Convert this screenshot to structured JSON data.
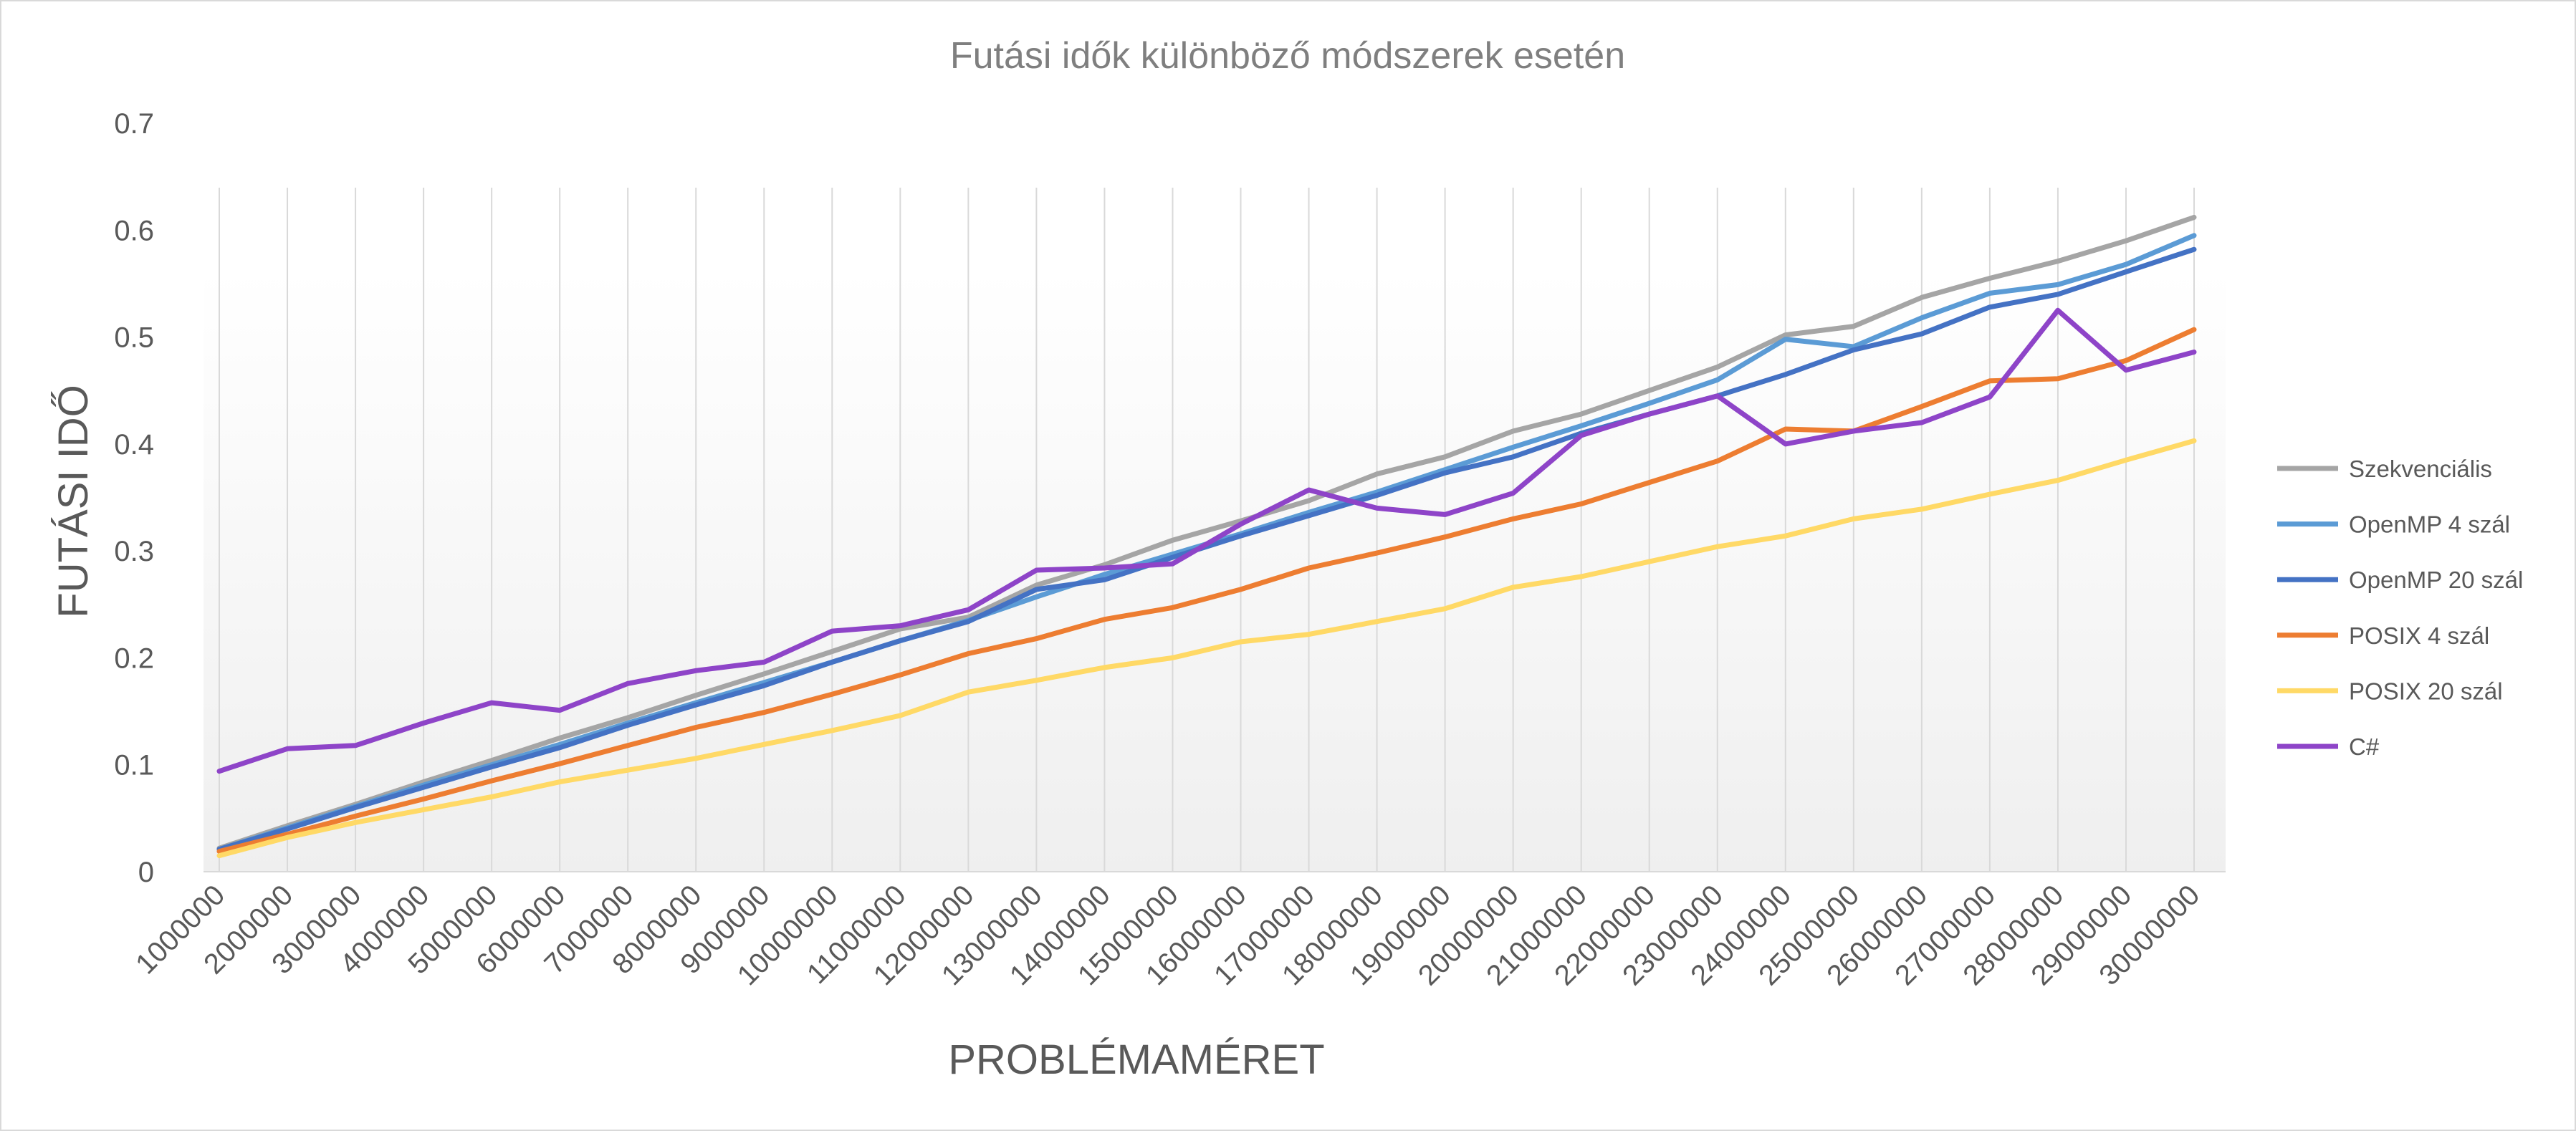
{
  "chart_data": {
    "type": "line",
    "title": "Futási idők különböző módszerek esetén",
    "xlabel": "PROBLÉMAMÉRET",
    "ylabel": "FUTÁSI IDŐ",
    "ylim": [
      0,
      0.7
    ],
    "yticks": [
      0,
      0.1,
      0.2,
      0.3,
      0.4,
      0.5,
      0.6,
      0.7
    ],
    "ytick_labels": [
      "0",
      "0.1",
      "0.2",
      "0.3",
      "0.4",
      "0.5",
      "0.6",
      "0.7"
    ],
    "grid": "vertical",
    "legend_position": "right",
    "categories": [
      "1000000",
      "2000000",
      "3000000",
      "4000000",
      "5000000",
      "6000000",
      "7000000",
      "8000000",
      "9000000",
      "10000000",
      "11000000",
      "12000000",
      "13000000",
      "14000000",
      "15000000",
      "16000000",
      "17000000",
      "18000000",
      "19000000",
      "20000000",
      "21000000",
      "22000000",
      "23000000",
      "24000000",
      "25000000",
      "26000000",
      "27000000",
      "28000000",
      "29000000",
      "30000000"
    ],
    "series": [
      {
        "name": "Szekvenciális",
        "color": "#a5a5a5",
        "values": [
          0.022,
          0.043,
          0.063,
          0.084,
          0.104,
          0.125,
          0.144,
          0.165,
          0.185,
          0.206,
          0.227,
          0.238,
          0.268,
          0.287,
          0.31,
          0.328,
          0.347,
          0.372,
          0.388,
          0.412,
          0.428,
          0.45,
          0.472,
          0.502,
          0.51,
          0.537,
          0.555,
          0.571,
          0.59,
          0.612
        ]
      },
      {
        "name": "OpenMP 4 szál",
        "color": "#5b9bd5",
        "values": [
          0.021,
          0.041,
          0.061,
          0.081,
          0.1,
          0.119,
          0.139,
          0.158,
          0.177,
          0.196,
          0.216,
          0.235,
          0.257,
          0.278,
          0.297,
          0.316,
          0.336,
          0.355,
          0.376,
          0.397,
          0.417,
          0.438,
          0.46,
          0.498,
          0.491,
          0.518,
          0.541,
          0.549,
          0.568,
          0.595
        ]
      },
      {
        "name": "OpenMP 20 szál",
        "color": "#4472c4",
        "values": [
          0.021,
          0.04,
          0.06,
          0.079,
          0.098,
          0.116,
          0.137,
          0.156,
          0.174,
          0.196,
          0.216,
          0.234,
          0.264,
          0.273,
          0.294,
          0.314,
          0.333,
          0.352,
          0.373,
          0.388,
          0.41,
          0.428,
          0.445,
          0.465,
          0.488,
          0.503,
          0.528,
          0.54,
          0.561,
          0.582
        ]
      },
      {
        "name": "POSIX 4 szál",
        "color": "#ed7d31",
        "values": [
          0.019,
          0.035,
          0.052,
          0.068,
          0.085,
          0.101,
          0.118,
          0.135,
          0.149,
          0.166,
          0.184,
          0.204,
          0.218,
          0.236,
          0.247,
          0.264,
          0.284,
          0.298,
          0.313,
          0.33,
          0.344,
          0.364,
          0.384,
          0.414,
          0.412,
          0.435,
          0.459,
          0.461,
          0.478,
          0.507
        ]
      },
      {
        "name": "POSIX 20 szál",
        "color": "#ffd966",
        "values": [
          0.015,
          0.032,
          0.046,
          0.058,
          0.07,
          0.084,
          0.095,
          0.106,
          0.119,
          0.132,
          0.146,
          0.168,
          0.179,
          0.191,
          0.2,
          0.215,
          0.222,
          0.234,
          0.246,
          0.266,
          0.276,
          0.29,
          0.304,
          0.314,
          0.33,
          0.339,
          0.353,
          0.366,
          0.385,
          0.403
        ]
      },
      {
        "name": "C#",
        "color": "#8e44c8",
        "values": [
          0.094,
          0.115,
          0.118,
          0.139,
          0.158,
          0.151,
          0.176,
          0.188,
          0.196,
          0.225,
          0.23,
          0.245,
          0.282,
          0.284,
          0.288,
          0.325,
          0.357,
          0.34,
          0.334,
          0.354,
          0.408,
          0.428,
          0.445,
          0.4,
          0.412,
          0.42,
          0.444,
          0.525,
          0.469,
          0.486
        ]
      }
    ]
  }
}
